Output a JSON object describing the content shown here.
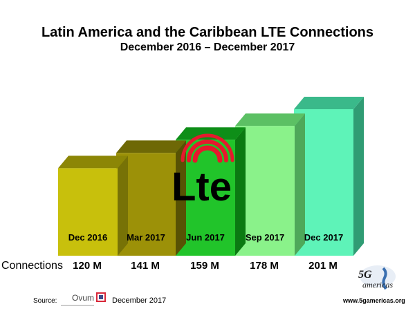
{
  "chart_data": {
    "type": "bar",
    "title": "Latin America and the Caribbean LTE Connections",
    "subtitle": "December 2016 – December 2017",
    "categories": [
      "Dec 2016",
      "Mar 2017",
      "Jun 2017",
      "Sep 2017",
      "Dec 2017"
    ],
    "series": [
      {
        "name": "Connections",
        "values": [
          120,
          141,
          159,
          178,
          201
        ]
      }
    ],
    "value_labels": [
      "120 M",
      "141 M",
      "159 M",
      "178 M",
      "201 M"
    ],
    "row_label": "Connections",
    "unit": "M",
    "ylim": [
      0,
      201
    ],
    "grid": false,
    "style": "3d-columns",
    "colors": {
      "front": [
        "#c8c00c",
        "#9c9108",
        "#21c42a",
        "#8af28a",
        "#5ef3b8"
      ],
      "top": [
        "#8c8606",
        "#6e6806",
        "#0e8e18",
        "#5cc064",
        "#3ab98a"
      ],
      "side": [
        "#777206",
        "#575204",
        "#0b7a12",
        "#4ea85a",
        "#309c74"
      ]
    }
  },
  "center_logo": {
    "text": "Lte",
    "color": "#000000",
    "wave_color": "#e5192d"
  },
  "footer": {
    "source_label": "Source:",
    "source_name": "Ovum",
    "source_date": "December 2017",
    "brand_url": "www.5gamericas.org"
  }
}
